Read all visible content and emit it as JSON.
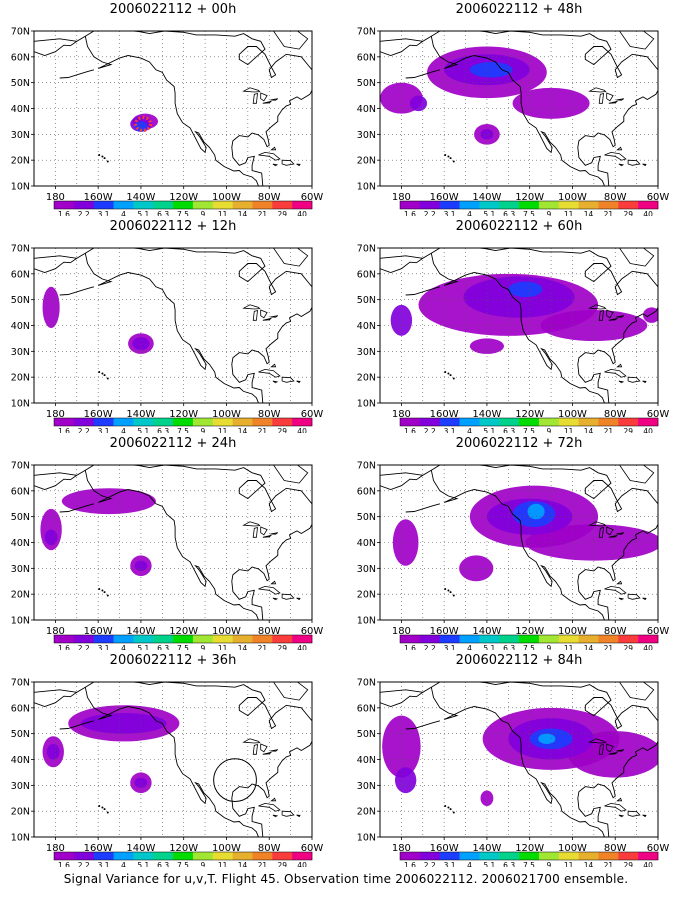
{
  "footer": "Signal Variance for u,v,T. Flight 45. Observation time 2006022112. 2006021700 ensemble.",
  "colors": {
    "levels": [
      "#a000c8",
      "#8200dc",
      "#1e3cff",
      "#00a0ff",
      "#00c8c8",
      "#00d28c",
      "#00dc00",
      "#a0e632",
      "#e6dc32",
      "#e6af2d",
      "#f08228",
      "#fa3c3c",
      "#f00082"
    ]
  },
  "chart_data": [
    {
      "type": "heatmap",
      "title": "2006022112 + 00h",
      "x_ticks": [
        "180",
        "160W",
        "140W",
        "120W",
        "100W",
        "80W",
        "60W"
      ],
      "y_ticks": [
        "10N",
        "20N",
        "30N",
        "40N",
        "50N",
        "60N",
        "70N"
      ],
      "xlim": [
        -190,
        -60
      ],
      "ylim": [
        10,
        70
      ],
      "colorbar_labels": [
        "1.6",
        "2.2",
        "3.1",
        "4",
        "5.1",
        "6.3",
        "7.5",
        "9",
        "11",
        "14",
        "21",
        "29",
        "40"
      ],
      "features": [
        {
          "lon": -138,
          "lat": 35,
          "rx": 6,
          "ry": 3,
          "level": 0
        },
        {
          "lon": -140,
          "lat": 34,
          "rx": 5,
          "ry": 3,
          "level": 1
        },
        {
          "lon": -140,
          "lat": 33,
          "rx": 3,
          "ry": 2,
          "level": 2
        },
        {
          "lon": -139,
          "lat": 34,
          "rx": 3.5,
          "ry": 2.5,
          "level": 11,
          "ring": true
        }
      ]
    },
    {
      "type": "heatmap",
      "title": "2006022112 + 12h",
      "x_ticks": [
        "180",
        "160W",
        "140W",
        "120W",
        "100W",
        "80W",
        "60W"
      ],
      "y_ticks": [
        "10N",
        "20N",
        "30N",
        "40N",
        "50N",
        "60N",
        "70N"
      ],
      "xlim": [
        -190,
        -60
      ],
      "ylim": [
        10,
        70
      ],
      "colorbar_labels": [
        "1.6",
        "2.2",
        "3.1",
        "4",
        "5.1",
        "6.3",
        "7.5",
        "9",
        "11",
        "14",
        "21",
        "29",
        "40"
      ],
      "features": [
        {
          "lon": -182,
          "lat": 47,
          "rx": 4,
          "ry": 8,
          "level": 0
        },
        {
          "lon": -140,
          "lat": 33,
          "rx": 6,
          "ry": 4,
          "level": 0
        },
        {
          "lon": -140,
          "lat": 33,
          "rx": 4,
          "ry": 2.5,
          "level": 1
        }
      ]
    },
    {
      "type": "heatmap",
      "title": "2006022112 + 24h",
      "x_ticks": [
        "180",
        "160W",
        "140W",
        "120W",
        "100W",
        "80W",
        "60W"
      ],
      "y_ticks": [
        "10N",
        "20N",
        "30N",
        "40N",
        "50N",
        "60N",
        "70N"
      ],
      "xlim": [
        -190,
        -60
      ],
      "ylim": [
        10,
        70
      ],
      "colorbar_labels": [
        "1.6",
        "2.2",
        "3.1",
        "4",
        "5.1",
        "6.3",
        "7.5",
        "9",
        "11",
        "14",
        "21",
        "29",
        "40"
      ],
      "features": [
        {
          "lon": -155,
          "lat": 56,
          "rx": 22,
          "ry": 5,
          "level": 0
        },
        {
          "lon": -182,
          "lat": 45,
          "rx": 5,
          "ry": 8,
          "level": 0
        },
        {
          "lon": -182,
          "lat": 42,
          "rx": 3,
          "ry": 3,
          "level": 1
        },
        {
          "lon": -140,
          "lat": 31,
          "rx": 5,
          "ry": 4,
          "level": 0
        },
        {
          "lon": -140,
          "lat": 31,
          "rx": 3,
          "ry": 2,
          "level": 1
        }
      ]
    },
    {
      "type": "heatmap",
      "title": "2006022112 + 36h",
      "x_ticks": [
        "180",
        "160W",
        "140W",
        "120W",
        "100W",
        "80W",
        "60W"
      ],
      "y_ticks": [
        "10N",
        "20N",
        "30N",
        "40N",
        "50N",
        "60N",
        "70N"
      ],
      "xlim": [
        -190,
        -60
      ],
      "ylim": [
        10,
        70
      ],
      "colorbar_labels": [
        "1.6",
        "2.2",
        "3.1",
        "4",
        "5.1",
        "6.3",
        "7.5",
        "9",
        "11",
        "14",
        "21",
        "29",
        "40"
      ],
      "features": [
        {
          "lon": -148,
          "lat": 54,
          "rx": 26,
          "ry": 7,
          "level": 0
        },
        {
          "lon": -148,
          "lat": 54,
          "rx": 20,
          "ry": 4,
          "level": 1
        },
        {
          "lon": -181,
          "lat": 43,
          "rx": 5,
          "ry": 6,
          "level": 0
        },
        {
          "lon": -181,
          "lat": 43,
          "rx": 3,
          "ry": 3,
          "level": 1
        },
        {
          "lon": -140,
          "lat": 31,
          "rx": 5,
          "ry": 4,
          "level": 0
        },
        {
          "lon": -140,
          "lat": 31,
          "rx": 3,
          "ry": 2,
          "level": 1
        }
      ],
      "circle": {
        "lon": -96,
        "lat": 32,
        "r_lon": 10
      }
    },
    {
      "type": "heatmap",
      "title": "2006022112 + 48h",
      "x_ticks": [
        "180",
        "160W",
        "140W",
        "120W",
        "100W",
        "80W",
        "60W"
      ],
      "y_ticks": [
        "10N",
        "20N",
        "30N",
        "40N",
        "50N",
        "60N",
        "70N"
      ],
      "xlim": [
        -190,
        -60
      ],
      "ylim": [
        10,
        70
      ],
      "colorbar_labels": [
        "1.6",
        "2.2",
        "3.1",
        "4",
        "5.1",
        "6.3",
        "7.5",
        "9",
        "11",
        "14",
        "21",
        "29",
        "40"
      ],
      "features": [
        {
          "lon": -140,
          "lat": 54,
          "rx": 28,
          "ry": 10,
          "level": 0
        },
        {
          "lon": -180,
          "lat": 44,
          "rx": 10,
          "ry": 6,
          "level": 0
        },
        {
          "lon": -110,
          "lat": 42,
          "rx": 18,
          "ry": 6,
          "level": 0
        },
        {
          "lon": -140,
          "lat": 55,
          "rx": 20,
          "ry": 6,
          "level": 1
        },
        {
          "lon": -138,
          "lat": 55,
          "rx": 10,
          "ry": 3,
          "level": 2
        },
        {
          "lon": -172,
          "lat": 42,
          "rx": 4,
          "ry": 3,
          "level": 1
        },
        {
          "lon": -140,
          "lat": 30,
          "rx": 6,
          "ry": 4,
          "level": 0
        },
        {
          "lon": -140,
          "lat": 30,
          "rx": 3,
          "ry": 2,
          "level": 1
        }
      ]
    },
    {
      "type": "heatmap",
      "title": "2006022112 + 60h",
      "x_ticks": [
        "180",
        "160W",
        "140W",
        "120W",
        "100W",
        "80W",
        "60W"
      ],
      "y_ticks": [
        "10N",
        "20N",
        "30N",
        "40N",
        "50N",
        "60N",
        "70N"
      ],
      "xlim": [
        -190,
        -60
      ],
      "ylim": [
        10,
        70
      ],
      "colorbar_labels": [
        "1.6",
        "2.2",
        "3.1",
        "4",
        "5.1",
        "6.3",
        "7.5",
        "9",
        "11",
        "14",
        "21",
        "29",
        "40"
      ],
      "features": [
        {
          "lon": -130,
          "lat": 48,
          "rx": 42,
          "ry": 12,
          "level": 0
        },
        {
          "lon": -125,
          "lat": 51,
          "rx": 26,
          "ry": 8,
          "level": 1
        },
        {
          "lon": -122,
          "lat": 54,
          "rx": 8,
          "ry": 3,
          "level": 2
        },
        {
          "lon": -180,
          "lat": 42,
          "rx": 5,
          "ry": 6,
          "level": 1
        },
        {
          "lon": -90,
          "lat": 40,
          "rx": 25,
          "ry": 6,
          "level": 0
        },
        {
          "lon": -140,
          "lat": 32,
          "rx": 8,
          "ry": 3,
          "level": 0
        },
        {
          "lon": -63,
          "lat": 44,
          "rx": 4,
          "ry": 3,
          "level": 0
        }
      ]
    },
    {
      "type": "heatmap",
      "title": "2006022112 + 72h",
      "x_ticks": [
        "180",
        "160W",
        "140W",
        "120W",
        "100W",
        "80W",
        "60W"
      ],
      "y_ticks": [
        "10N",
        "20N",
        "30N",
        "40N",
        "50N",
        "60N",
        "70N"
      ],
      "xlim": [
        -190,
        -60
      ],
      "ylim": [
        10,
        70
      ],
      "colorbar_labels": [
        "1.6",
        "2.2",
        "3.1",
        "4",
        "5.1",
        "6.3",
        "7.5",
        "9",
        "11",
        "14",
        "21",
        "29",
        "40"
      ],
      "features": [
        {
          "lon": -118,
          "lat": 50,
          "rx": 30,
          "ry": 12,
          "level": 0
        },
        {
          "lon": -90,
          "lat": 40,
          "rx": 32,
          "ry": 7,
          "level": 0
        },
        {
          "lon": -178,
          "lat": 40,
          "rx": 6,
          "ry": 9,
          "level": 0
        },
        {
          "lon": -120,
          "lat": 50,
          "rx": 20,
          "ry": 7,
          "level": 1
        },
        {
          "lon": -118,
          "lat": 51,
          "rx": 10,
          "ry": 5,
          "level": 2
        },
        {
          "lon": -117,
          "lat": 52,
          "rx": 4,
          "ry": 3,
          "level": 3
        },
        {
          "lon": -145,
          "lat": 30,
          "rx": 8,
          "ry": 5,
          "level": 0
        }
      ]
    },
    {
      "type": "heatmap",
      "title": "2006022112 + 84h",
      "x_ticks": [
        "180",
        "160W",
        "140W",
        "120W",
        "100W",
        "80W",
        "60W"
      ],
      "y_ticks": [
        "10N",
        "20N",
        "30N",
        "40N",
        "50N",
        "60N",
        "70N"
      ],
      "xlim": [
        -190,
        -60
      ],
      "ylim": [
        10,
        70
      ],
      "colorbar_labels": [
        "1.6",
        "2.2",
        "3.1",
        "4",
        "5.1",
        "6.3",
        "7.5",
        "9",
        "11",
        "14",
        "21",
        "29",
        "40"
      ],
      "features": [
        {
          "lon": -110,
          "lat": 48,
          "rx": 32,
          "ry": 12,
          "level": 0
        },
        {
          "lon": -80,
          "lat": 42,
          "rx": 22,
          "ry": 9,
          "level": 0
        },
        {
          "lon": -180,
          "lat": 45,
          "rx": 9,
          "ry": 12,
          "level": 0
        },
        {
          "lon": -110,
          "lat": 48,
          "rx": 20,
          "ry": 8,
          "level": 1
        },
        {
          "lon": -110,
          "lat": 48,
          "rx": 10,
          "ry": 4,
          "level": 2
        },
        {
          "lon": -112,
          "lat": 48,
          "rx": 4,
          "ry": 2,
          "level": 3
        },
        {
          "lon": -178,
          "lat": 32,
          "rx": 5,
          "ry": 5,
          "level": 1
        },
        {
          "lon": -140,
          "lat": 25,
          "rx": 3,
          "ry": 3,
          "level": 0
        }
      ]
    }
  ]
}
